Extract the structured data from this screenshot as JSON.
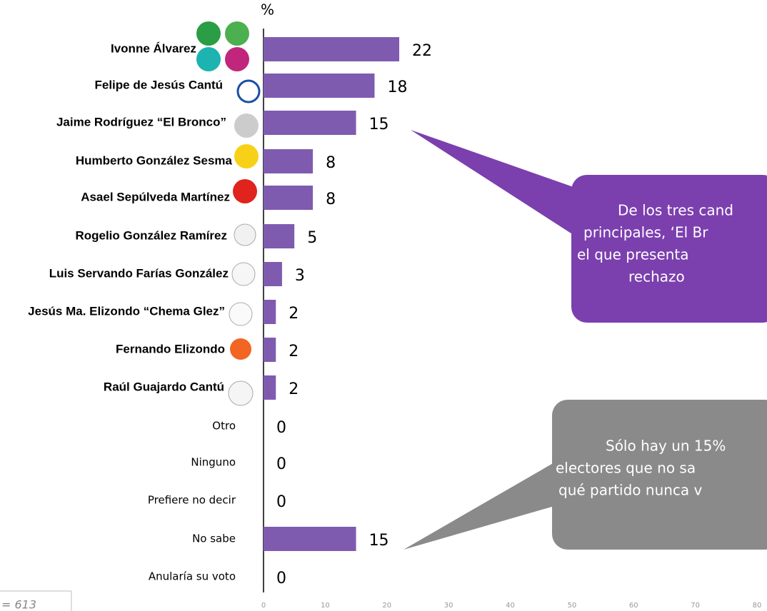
{
  "chart_data": {
    "type": "bar",
    "orientation": "horizontal",
    "axis_label": "%",
    "categories": [
      "Ivonne Álvarez",
      "Felipe de Jesús Cantú",
      "Jaime Rodríguez “El Bronco”",
      "Humberto González Sesma",
      "Asael Sepúlveda Martínez",
      "Rogelio González Ramírez",
      "Luis Servando Farías González",
      "Jesús Ma. Elizondo “Chema Glez”",
      "Fernando Elizondo",
      "Raúl Guajardo Cantú",
      "Otro",
      "Ninguno",
      "Prefiere no decir",
      "No sabe",
      "Anularía su voto"
    ],
    "values": [
      22,
      18,
      15,
      8,
      8,
      5,
      3,
      2,
      2,
      2,
      0,
      0,
      0,
      15,
      0
    ],
    "color": "#7f5bb0",
    "xlim": [
      0,
      80
    ],
    "xticks": [
      0,
      10,
      20,
      30,
      40,
      50,
      60,
      70,
      80
    ],
    "annotations": [
      {
        "lines": [
          "De los tres cand",
          "principales, ‘El Br",
          "el  que presenta",
          "rechazo"
        ]
      },
      {
        "lines": [
          "Sólo hay un 15%",
          "electores que no sa",
          "qué partido nunca v"
        ]
      }
    ],
    "note": "= 613"
  }
}
